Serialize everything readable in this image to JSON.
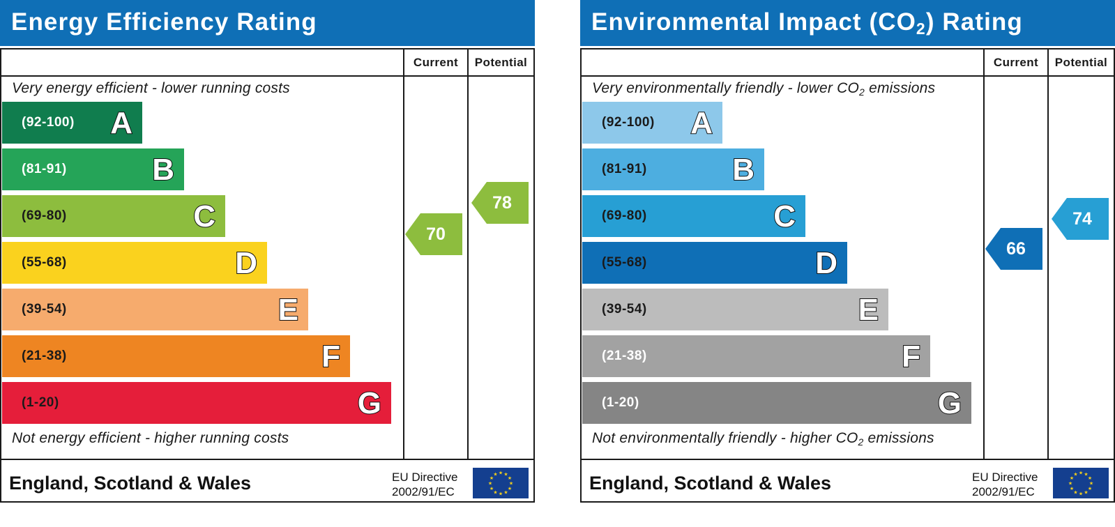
{
  "chart_data": [
    {
      "type": "bar",
      "title": "Energy Efficiency Rating",
      "columns": [
        "Current",
        "Potential"
      ],
      "top_note": "Very energy efficient - lower running costs",
      "bottom_note": "Not energy efficient - higher running costs",
      "bands": [
        {
          "range": "(92-100)",
          "letter": "A",
          "color": "#107d4e",
          "text_color": "#ffffff"
        },
        {
          "range": "(81-91)",
          "letter": "B",
          "color": "#25a458",
          "text_color": "#ffffff"
        },
        {
          "range": "(69-80)",
          "letter": "C",
          "color": "#8dbd3e",
          "text_color": "#1a1a1a"
        },
        {
          "range": "(55-68)",
          "letter": "D",
          "color": "#fad21e",
          "text_color": "#1a1a1a"
        },
        {
          "range": "(39-54)",
          "letter": "E",
          "color": "#f6ab6d",
          "text_color": "#1a1a1a"
        },
        {
          "range": "(21-38)",
          "letter": "F",
          "color": "#ee8522",
          "text_color": "#1a1a1a"
        },
        {
          "range": "(1-20)",
          "letter": "G",
          "color": "#e51e3a",
          "text_color": "#1a1a1a"
        }
      ],
      "current": {
        "value": 70,
        "color": "#8dbd3e"
      },
      "potential": {
        "value": 78,
        "color": "#8dbd3e"
      },
      "footer": {
        "region": "England, Scotland & Wales",
        "directive_line1": "EU Directive",
        "directive_line2": "2002/91/EC"
      }
    },
    {
      "type": "bar",
      "title_parts": [
        "Environmental Impact (CO",
        "2",
        ") Rating"
      ],
      "columns": [
        "Current",
        "Potential"
      ],
      "top_note_parts": [
        "Very environmentally friendly - lower CO",
        "2",
        " emissions"
      ],
      "bottom_note_parts": [
        "Not environmentally friendly - higher CO",
        "2",
        " emissions"
      ],
      "bands": [
        {
          "range": "(92-100)",
          "letter": "A",
          "color": "#8dc8ea",
          "text_color": "#1a1a1a"
        },
        {
          "range": "(81-91)",
          "letter": "B",
          "color": "#4daee0",
          "text_color": "#1a1a1a"
        },
        {
          "range": "(69-80)",
          "letter": "C",
          "color": "#279fd4",
          "text_color": "#1a1a1a"
        },
        {
          "range": "(55-68)",
          "letter": "D",
          "color": "#0f6fb6",
          "text_color": "#1a1a1a"
        },
        {
          "range": "(39-54)",
          "letter": "E",
          "color": "#bcbcbc",
          "text_color": "#1a1a1a"
        },
        {
          "range": "(21-38)",
          "letter": "F",
          "color": "#a2a2a2",
          "text_color": "#ffffff"
        },
        {
          "range": "(1-20)",
          "letter": "G",
          "color": "#858585",
          "text_color": "#ffffff"
        }
      ],
      "current": {
        "value": 66,
        "color": "#0f6fb6"
      },
      "potential": {
        "value": 74,
        "color": "#279fd4"
      },
      "footer": {
        "region": "England, Scotland & Wales",
        "directive_line1": "EU Directive",
        "directive_line2": "2002/91/EC"
      }
    }
  ],
  "icons": {
    "flag": "eu-flag-icon",
    "star_color": "#f6d21a"
  }
}
